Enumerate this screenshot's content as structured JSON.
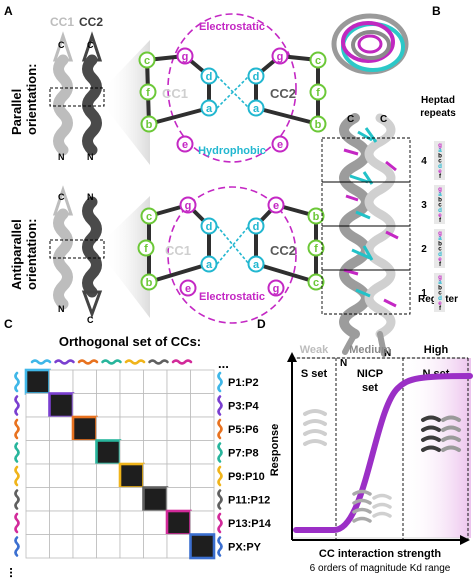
{
  "panels": {
    "a": "A",
    "b": "B",
    "c": "C",
    "d": "D"
  },
  "panel_a": {
    "cc1": "CC1",
    "cc2": "CC2",
    "c": "C",
    "n": "N",
    "parallel": [
      "Parallel",
      "orientation:"
    ],
    "antiparallel": [
      "Antiparallel",
      "orientation:"
    ],
    "electrostatic": "Electrostatic",
    "hydrophobic": "Hydrophobic",
    "heptad_letters": [
      "a",
      "b",
      "c",
      "d",
      "e",
      "f",
      "g"
    ],
    "colors": {
      "electrostatic": "#c428c4",
      "hydrophobic": "#22b7d0",
      "cf_positions": "#6cc838",
      "helix_light": "#b8b8b8",
      "helix_dark": "#4a4a4a"
    }
  },
  "panel_b": {
    "heptad_title": [
      "Heptad",
      "repeats"
    ],
    "repeat_numbers": [
      "4",
      "3",
      "2",
      "1"
    ],
    "register_label": "Register",
    "register_letters": [
      "g",
      "a",
      "b",
      "c",
      "d",
      "e",
      "f"
    ],
    "c": "C",
    "n": "N"
  },
  "panel_c": {
    "title": "Orthogonal set of CCs:",
    "pair_labels": [
      "P1:P2",
      "P3:P4",
      "P5:P6",
      "P7:P8",
      "P9:P10",
      "P11:P12",
      "P13:P14",
      "PX:PY"
    ],
    "pair_colors": [
      "#3fb7e8",
      "#7a3fd0",
      "#e8721f",
      "#28b59c",
      "#f0b41a",
      "#606060",
      "#d22a9a",
      "#3b6fd0"
    ],
    "ellipsis": "..."
  },
  "panel_d": {
    "weak": "Weak",
    "medium": "Medium",
    "high": "High",
    "s_set": "S set",
    "nicp_set": [
      "NICP",
      "set"
    ],
    "n_set": "N set",
    "ylabel": "Response",
    "xlabel": "CC interaction strength",
    "xsublabel": "6 orders of magnitude Kd range",
    "curve_color": "#9b2fc6"
  }
}
